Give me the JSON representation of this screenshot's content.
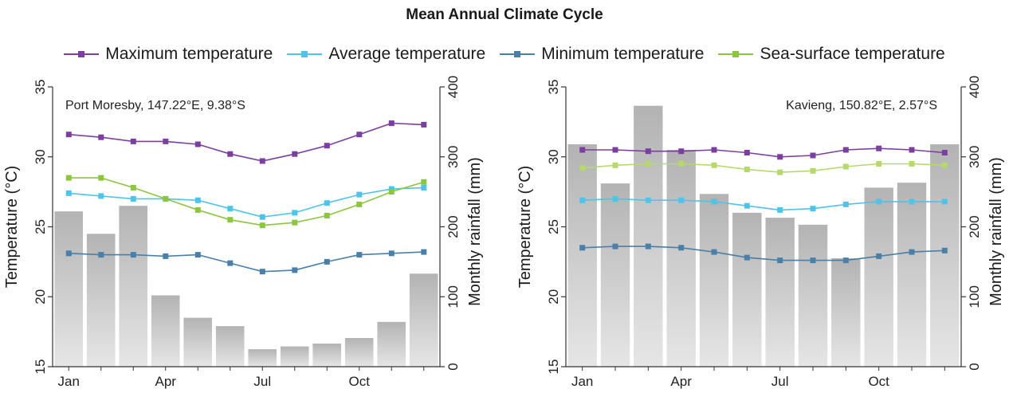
{
  "title": "Mean Annual Climate Cycle",
  "legend": [
    {
      "label": "Maximum temperature",
      "color": "#7b3fa0"
    },
    {
      "label": "Average temperature",
      "color": "#4fc3e8"
    },
    {
      "label": "Minimum temperature",
      "color": "#4a7fa8"
    },
    {
      "label": "Sea-surface temperature",
      "color": "#8cc63f"
    }
  ],
  "chart_data": [
    {
      "type": "bar+line",
      "annotation": "Port Moresby, 147.22°E, 9.38°S",
      "ylabel": "Temperature (°C)",
      "y2label": "Monthly rainfall (mm)",
      "ylim": [
        15,
        35
      ],
      "y2lim": [
        0,
        400
      ],
      "yticks": [
        "15",
        "20",
        "25",
        "30",
        "35"
      ],
      "y2ticks": [
        "0",
        "100",
        "200",
        "300",
        "400"
      ],
      "xticklabels": [
        "Jan",
        "Apr",
        "Jul",
        "Oct"
      ],
      "xtick_months": [
        1,
        4,
        7,
        10
      ],
      "months": [
        1,
        2,
        3,
        4,
        5,
        6,
        7,
        8,
        9,
        10,
        11,
        12
      ],
      "rainfall": [
        222,
        190,
        230,
        102,
        70,
        58,
        25,
        29,
        33,
        41,
        64,
        133
      ],
      "series": [
        {
          "name": "Maximum temperature",
          "color": "#7b3fa0",
          "values": [
            31.6,
            31.4,
            31.1,
            31.1,
            30.9,
            30.2,
            29.7,
            30.2,
            30.8,
            31.6,
            32.4,
            32.3
          ]
        },
        {
          "name": "Average temperature",
          "color": "#4fc3e8",
          "values": [
            27.4,
            27.2,
            27.0,
            27.0,
            26.9,
            26.3,
            25.7,
            26.0,
            26.7,
            27.3,
            27.7,
            27.8
          ]
        },
        {
          "name": "Minimum temperature",
          "color": "#4a7fa8",
          "values": [
            23.1,
            23.0,
            23.0,
            22.9,
            23.0,
            22.4,
            21.8,
            21.9,
            22.5,
            23.0,
            23.1,
            23.2
          ]
        },
        {
          "name": "Sea-surface temperature",
          "color": "#8cc63f",
          "values": [
            28.5,
            28.5,
            27.8,
            27.0,
            26.2,
            25.5,
            25.1,
            25.3,
            25.8,
            26.6,
            27.5,
            28.2
          ]
        }
      ]
    },
    {
      "type": "bar+line",
      "annotation": "Kavieng, 150.82°E, 2.57°S",
      "ylabel": "Temperature (°C)",
      "y2label": "Monthly rainfall (mm)",
      "ylim": [
        15,
        35
      ],
      "y2lim": [
        0,
        400
      ],
      "yticks": [
        "15",
        "20",
        "25",
        "30",
        "35"
      ],
      "y2ticks": [
        "0",
        "100",
        "200",
        "300",
        "400"
      ],
      "xticklabels": [
        "Jan",
        "Apr",
        "Jul",
        "Oct"
      ],
      "xtick_months": [
        1,
        4,
        7,
        10
      ],
      "months": [
        1,
        2,
        3,
        4,
        5,
        6,
        7,
        8,
        9,
        10,
        11,
        12
      ],
      "rainfall": [
        318,
        262,
        373,
        310,
        247,
        220,
        213,
        203,
        155,
        256,
        263,
        318
      ],
      "series": [
        {
          "name": "Maximum temperature",
          "color": "#7b3fa0",
          "values": [
            30.5,
            30.5,
            30.4,
            30.4,
            30.5,
            30.3,
            30.0,
            30.1,
            30.5,
            30.6,
            30.5,
            30.3
          ]
        },
        {
          "name": "Average temperature",
          "color": "#4fc3e8",
          "values": [
            26.9,
            27.0,
            26.9,
            26.9,
            26.8,
            26.5,
            26.2,
            26.3,
            26.6,
            26.8,
            26.8,
            26.8
          ]
        },
        {
          "name": "Minimum temperature",
          "color": "#4a7fa8",
          "values": [
            23.5,
            23.6,
            23.6,
            23.5,
            23.2,
            22.8,
            22.6,
            22.6,
            22.6,
            22.9,
            23.2,
            23.3
          ]
        },
        {
          "name": "Sea-surface temperature",
          "color": "#b5d96a",
          "values": [
            29.2,
            29.4,
            29.5,
            29.5,
            29.4,
            29.1,
            28.9,
            29.0,
            29.3,
            29.5,
            29.5,
            29.4
          ]
        }
      ]
    }
  ]
}
